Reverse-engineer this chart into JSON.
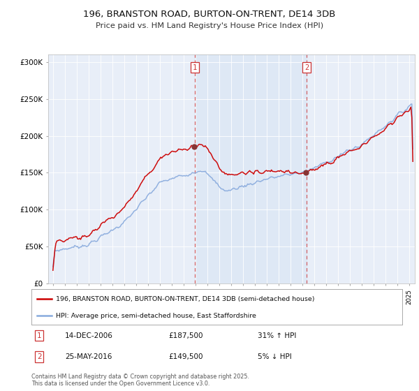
{
  "title": "196, BRANSTON ROAD, BURTON-ON-TRENT, DE14 3DB",
  "subtitle": "Price paid vs. HM Land Registry's House Price Index (HPI)",
  "legend_label_red": "196, BRANSTON ROAD, BURTON-ON-TRENT, DE14 3DB (semi-detached house)",
  "legend_label_blue": "HPI: Average price, semi-detached house, East Staffordshire",
  "sale1_date": "14-DEC-2006",
  "sale1_price": 187500,
  "sale1_year": 2006.95,
  "sale2_date": "25-MAY-2016",
  "sale2_price": 149500,
  "sale2_year": 2016.37,
  "sale1_pct": "31% ↑ HPI",
  "sale2_pct": "5% ↓ HPI",
  "footer": "Contains HM Land Registry data © Crown copyright and database right 2025.\nThis data is licensed under the Open Government Licence v3.0.",
  "ylim": [
    0,
    310000
  ],
  "yticks": [
    0,
    50000,
    100000,
    150000,
    200000,
    250000,
    300000
  ],
  "ytick_labels": [
    "£0",
    "£50K",
    "£100K",
    "£150K",
    "£200K",
    "£250K",
    "£300K"
  ],
  "bg_color": "#ffffff",
  "plot_bg": "#e8eef8",
  "red_color": "#cc0000",
  "blue_color": "#88aadd",
  "vline_color": "#cc3333",
  "shade_color": "#dde8f5"
}
